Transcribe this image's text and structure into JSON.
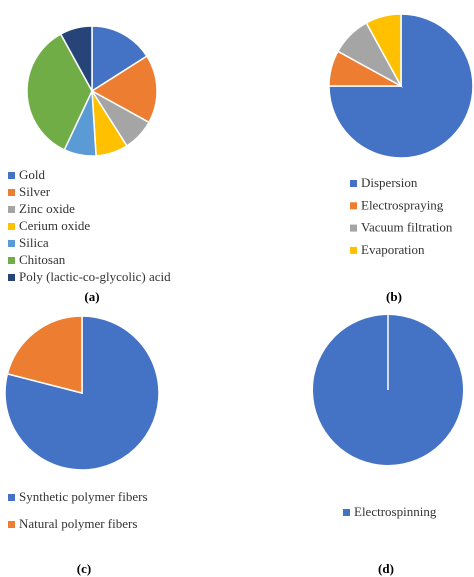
{
  "chart_data": [
    {
      "type": "pie",
      "caption": "(a)",
      "categories": [
        "Gold",
        "Silver",
        "Zinc oxide",
        "Cerium oxide",
        "Silica",
        "Chitosan",
        "Poly (lactic-co-glycolic) acid"
      ],
      "values": [
        16,
        17,
        8,
        8,
        8,
        35,
        8
      ],
      "colors": [
        "#4472c4",
        "#ed7d31",
        "#a5a5a5",
        "#ffc000",
        "#5b9bd5",
        "#70ad47",
        "#264478"
      ]
    },
    {
      "type": "pie",
      "caption": "(b)",
      "categories": [
        "Dispersion",
        "Electrospraying",
        "Vacuum filtration",
        "Evaporation"
      ],
      "values": [
        75,
        8,
        9,
        8
      ],
      "colors": [
        "#4472c4",
        "#ed7d31",
        "#a5a5a5",
        "#ffc000"
      ]
    },
    {
      "type": "pie",
      "caption": "(c)",
      "categories": [
        "Synthetic polymer fibers",
        "Natural polymer fibers"
      ],
      "values": [
        79,
        21
      ],
      "colors": [
        "#4472c4",
        "#ed7d31"
      ]
    },
    {
      "type": "pie",
      "caption": "(d)",
      "categories": [
        "Electrospinning"
      ],
      "values": [
        100
      ],
      "colors": [
        "#4472c4"
      ]
    }
  ]
}
